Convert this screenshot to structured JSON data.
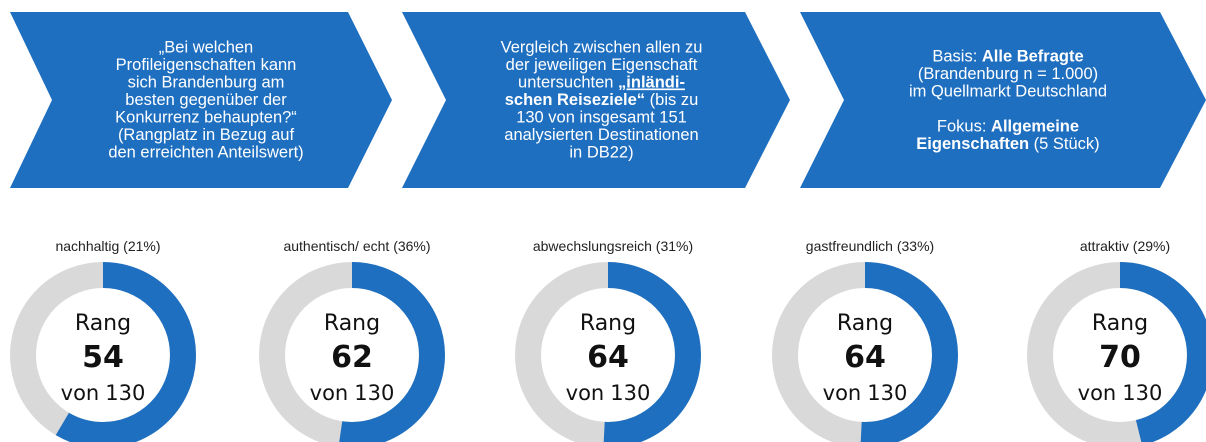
{
  "panels": [
    {
      "blocks": [
        [
          [
            {
              "text": "„Bei welchen"
            }
          ],
          [
            {
              "text": "Profileigenschaften kann"
            }
          ],
          [
            {
              "text": "sich Brandenburg am"
            }
          ],
          [
            {
              "text": "besten gegenüber der"
            }
          ],
          [
            {
              "text": "Konkurrenz behaupten?“"
            }
          ],
          [
            {
              "text": "(Rangplatz in Bezug auf"
            }
          ],
          [
            {
              "text": "den erreichten Anteilswert)"
            }
          ]
        ]
      ]
    },
    {
      "blocks": [
        [
          [
            {
              "text": "Vergleich zwischen allen zu"
            }
          ],
          [
            {
              "text": "der jeweiligen Eigenschaft"
            }
          ],
          [
            {
              "text": "untersuchten "
            },
            {
              "text": "„inländi-",
              "bold": true,
              "underline": true
            }
          ],
          [
            {
              "text": "schen Reiseziele“",
              "bold": true
            },
            {
              "text": " (bis zu"
            }
          ],
          [
            {
              "text": "130 von insgesamt 151"
            }
          ],
          [
            {
              "text": "analysierten Destinationen"
            }
          ],
          [
            {
              "text": "in DB22)"
            }
          ]
        ]
      ]
    },
    {
      "blocks": [
        [
          [
            {
              "text": "Basis: "
            },
            {
              "text": "Alle Befragte",
              "bold": true
            }
          ],
          [
            {
              "text": "(Brandenburg n = 1.000)"
            }
          ],
          [
            {
              "text": "im Quellmarkt Deutschland"
            }
          ]
        ],
        [
          [
            {
              "text": "Fokus: "
            },
            {
              "text": "Allgemeine",
              "bold": true
            }
          ],
          [
            {
              "text": "Eigenschaften",
              "bold": true
            },
            {
              "text": " (5 Stück)"
            }
          ]
        ]
      ]
    }
  ],
  "donuts": [
    {
      "label": "nachhaltig (21%)",
      "rang": "Rang",
      "rank": 54,
      "von": "von",
      "total": 130
    },
    {
      "label": "authentisch/ echt (36%)",
      "rang": "Rang",
      "rank": 62,
      "von": "von",
      "total": 130
    },
    {
      "label": "abwechslungsreich (31%)",
      "rang": "Rang",
      "rank": 64,
      "von": "von",
      "total": 130
    },
    {
      "label": "gastfreundlich (33%)",
      "rang": "Rang",
      "rank": 64,
      "von": "von",
      "total": 130
    },
    {
      "label": "attraktiv (29%)",
      "rang": "Rang",
      "rank": 70,
      "von": "von",
      "total": 130
    }
  ],
  "colors": {
    "primary": "#1f6fc0",
    "track": "#d9d9d9"
  }
}
